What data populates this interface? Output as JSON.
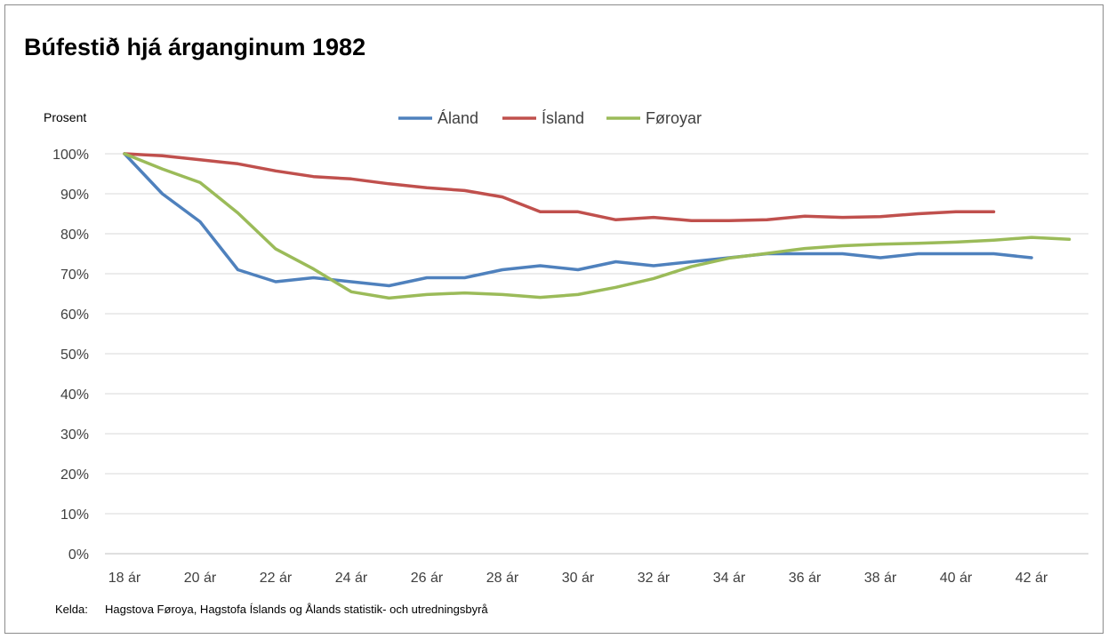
{
  "chart_data": {
    "type": "line",
    "title": "Búfestið hjá árganginum 1982",
    "ylabel": "Prosent",
    "xlabel": "",
    "ylim": [
      0,
      100
    ],
    "y_ticks": [
      "0%",
      "10%",
      "20%",
      "30%",
      "40%",
      "50%",
      "60%",
      "70%",
      "80%",
      "90%",
      "100%"
    ],
    "categories": [
      "18 ár",
      "19 ár",
      "20 ár",
      "21 ár",
      "22 ár",
      "23 ár",
      "24 ár",
      "25 ár",
      "26 ár",
      "27 ár",
      "28 ár",
      "29 ár",
      "30 ár",
      "31 ár",
      "32 ár",
      "33 ár",
      "34 ár",
      "35 ár",
      "36 ár",
      "37 ár",
      "38 ár",
      "39 ár",
      "40 ár",
      "41 ár",
      "42 ár",
      "43 ár"
    ],
    "x_tick_labels": [
      "18 ár",
      "20 ár",
      "22 ár",
      "24 ár",
      "26 ár",
      "28 ár",
      "30 ár",
      "32 ár",
      "34 ár",
      "36 ár",
      "38 ár",
      "40 ár",
      "42 ár"
    ],
    "grid": true,
    "legend_position": "top",
    "series": [
      {
        "name": "Áland",
        "color": "#4f81bd",
        "values": [
          100,
          90,
          83,
          71,
          68,
          69,
          68,
          67,
          69,
          69,
          71,
          72,
          71,
          73,
          72,
          73,
          74,
          75,
          75,
          75,
          74,
          75,
          75,
          75,
          74,
          null
        ]
      },
      {
        "name": "Ísland",
        "color": "#c0504d",
        "values": [
          100,
          99.5,
          98.5,
          97.5,
          95.7,
          94.3,
          93.7,
          92.5,
          91.5,
          90.8,
          89.2,
          85.5,
          85.5,
          83.5,
          84.1,
          83.3,
          83.3,
          83.5,
          84.4,
          84.1,
          84.3,
          85.0,
          85.5,
          85.5,
          null,
          null
        ]
      },
      {
        "name": "Føroyar",
        "color": "#9bbb59",
        "values": [
          100,
          96.2,
          92.8,
          85.2,
          76.2,
          71.2,
          65.5,
          63.9,
          64.8,
          65.2,
          64.8,
          64.1,
          64.8,
          66.6,
          68.8,
          71.8,
          73.9,
          75.1,
          76.3,
          77.0,
          77.4,
          77.6,
          77.9,
          78.4,
          79.1,
          78.6
        ]
      }
    ]
  },
  "source": {
    "label": "Kelda:",
    "text": "Hagstova Føroya, Hagstofa Íslands og Ålands statistik- och utredningsbyrå"
  }
}
